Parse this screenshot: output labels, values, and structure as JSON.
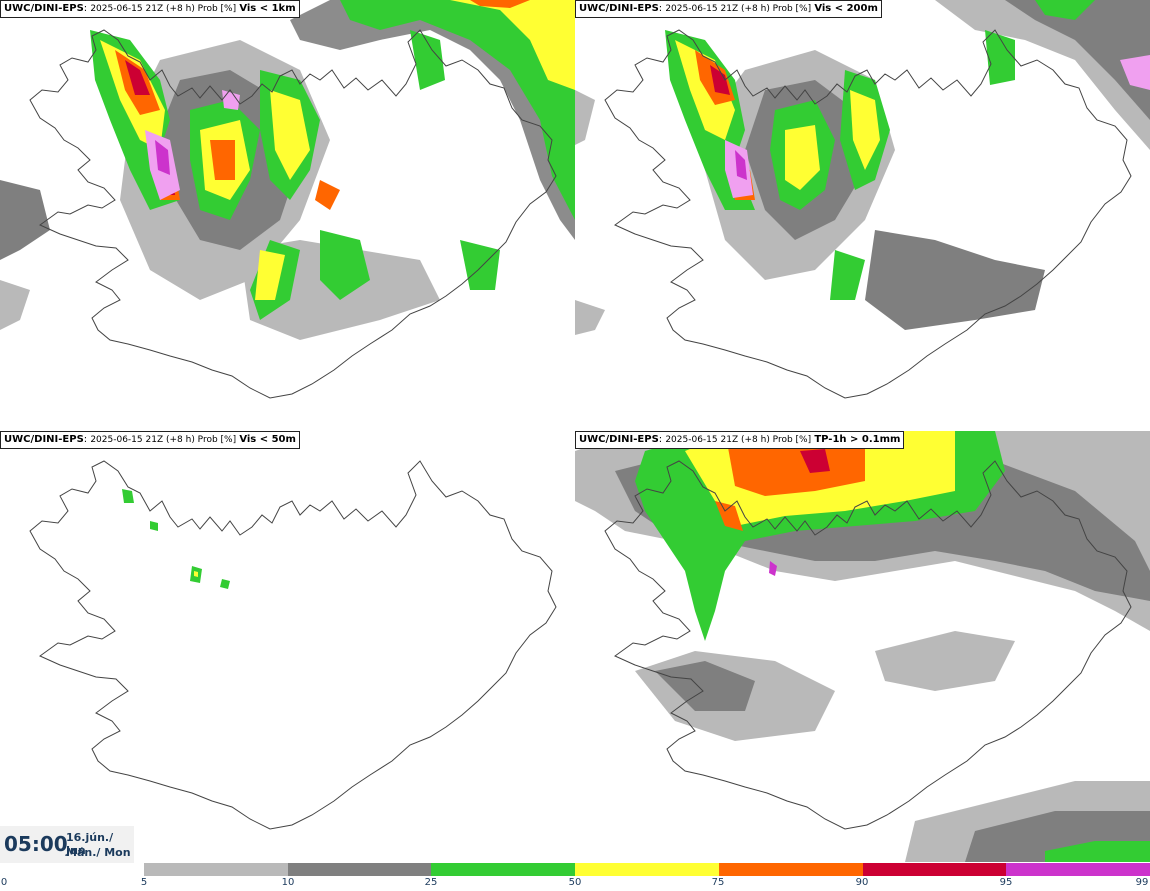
{
  "panels": [
    {
      "model": "UWC/DINI-EPS",
      "run": "2025-06-15 21Z (+8 h) Prob [%]",
      "field": "Vis < 1km"
    },
    {
      "model": "UWC/DINI-EPS",
      "run": "2025-06-15 21Z (+8 h) Prob [%]",
      "field": "Vis < 200m"
    },
    {
      "model": "UWC/DINI-EPS",
      "run": "2025-06-15 21Z (+8 h) Prob [%]",
      "field": "Vis < 50m"
    },
    {
      "model": "UWC/DINI-EPS",
      "run": "2025-06-15 21Z (+8 h) Prob [%]",
      "field": "TP-1h > 0.1mm"
    }
  ],
  "valid": {
    "time": "05:00",
    "date": "16.jún./ Jun",
    "day": "Mán./ Mon"
  },
  "colorbar": {
    "ticks": [
      "0",
      "5",
      "10",
      "25",
      "50",
      "75",
      "90",
      "95",
      "99"
    ],
    "colors": [
      "#b9b9b9",
      "#7f7f7f",
      "#33cc33",
      "#ffff33",
      "#ff6600",
      "#cc0033",
      "#cc33cc",
      "#f0a0f0"
    ]
  },
  "legend_colors": {
    "water_land_outline": "#444444"
  }
}
